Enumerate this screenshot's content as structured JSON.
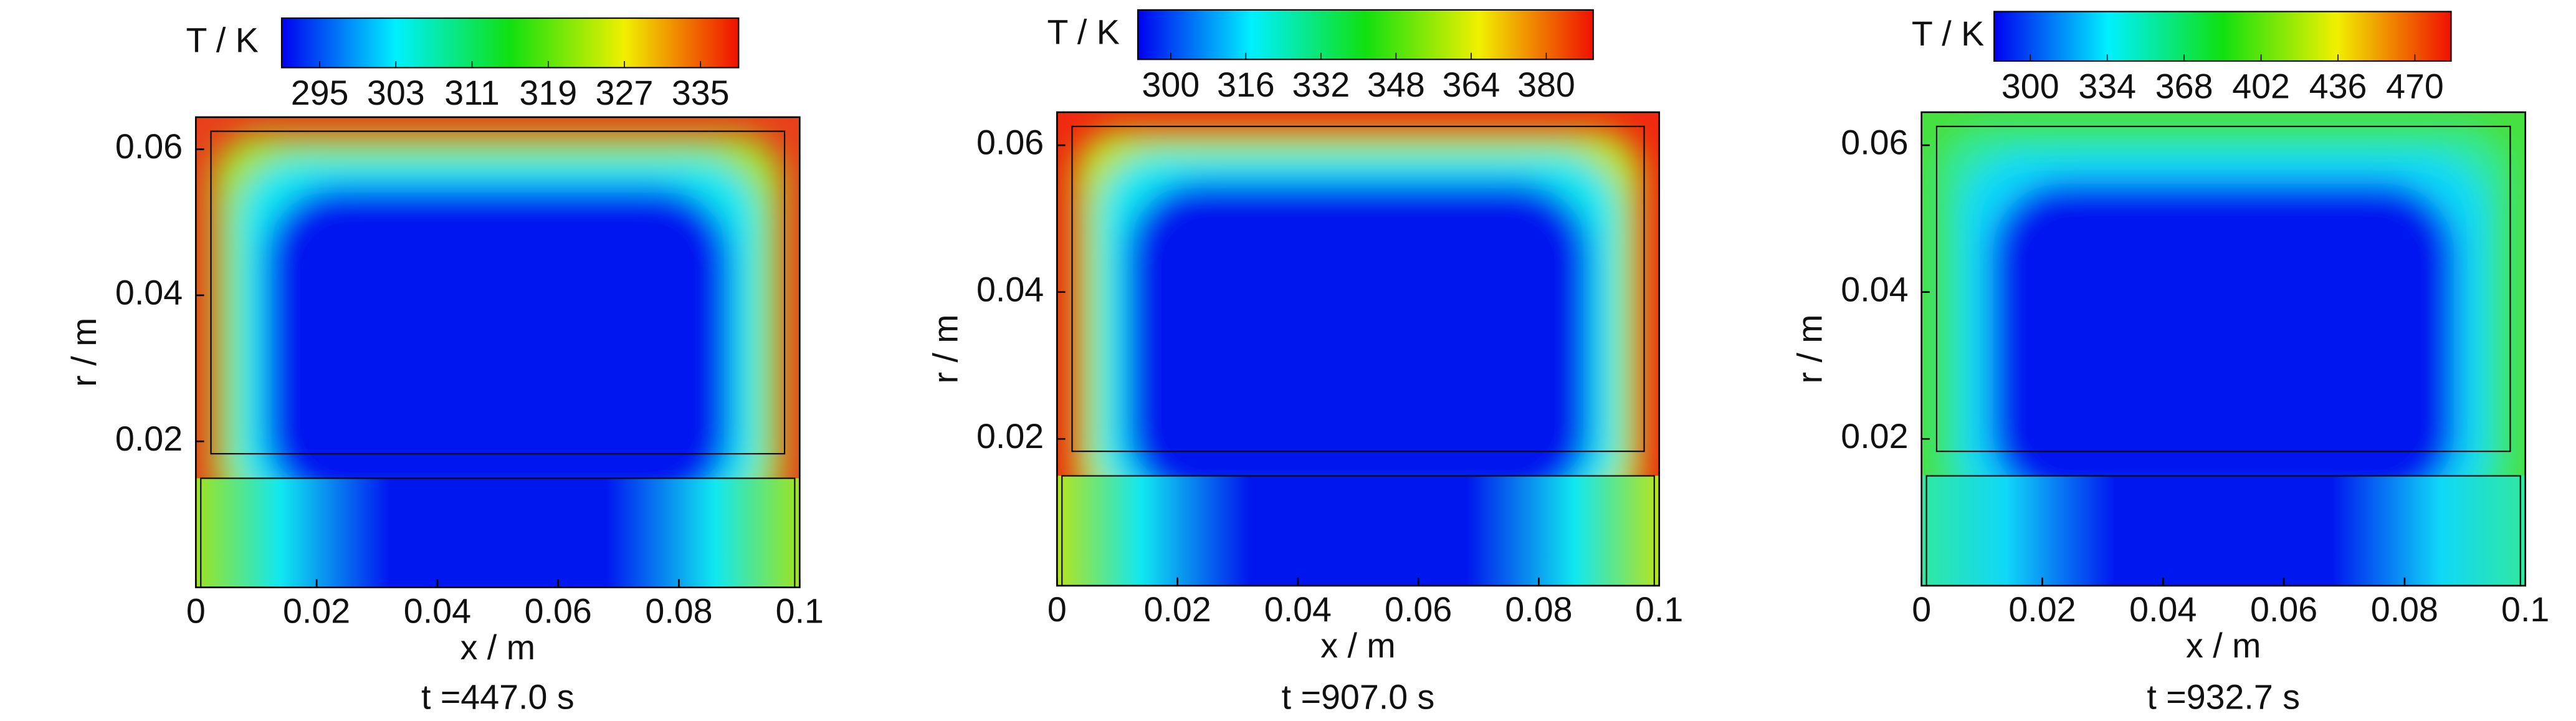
{
  "chart_data": [
    {
      "type": "heatmap",
      "title": "t =447.0 s",
      "xlabel": "x / m",
      "ylabel": "r / m",
      "colorbar_label": "T / K",
      "colorbar_lim": [
        291,
        339
      ],
      "colorbar_ticks": [
        295,
        303,
        311,
        319,
        327,
        335
      ],
      "xlim": [
        0,
        0.1
      ],
      "ylim": [
        0,
        0.0644
      ],
      "xticks": [
        0,
        0.02,
        0.04,
        0.06,
        0.08,
        0.1
      ],
      "yticks": [
        0.02,
        0.04,
        0.06
      ]
    },
    {
      "type": "heatmap",
      "title": "t =907.0 s",
      "xlabel": "x / m",
      "ylabel": "r / m",
      "colorbar_label": "T / K",
      "colorbar_lim": [
        293,
        390
      ],
      "colorbar_ticks": [
        300,
        316,
        332,
        348,
        364,
        380
      ],
      "xlim": [
        0,
        0.1
      ],
      "ylim": [
        0,
        0.0645
      ],
      "xticks": [
        0,
        0.02,
        0.04,
        0.06,
        0.08,
        0.1
      ],
      "yticks": [
        0.02,
        0.04,
        0.06
      ]
    },
    {
      "type": "heatmap",
      "title": "t =932.7 s",
      "xlabel": "x / m",
      "ylabel": "r / m",
      "colorbar_label": "T / K",
      "colorbar_lim": [
        284,
        486
      ],
      "colorbar_ticks": [
        300,
        334,
        368,
        402,
        436,
        470
      ],
      "xlim": [
        0,
        0.1
      ],
      "ylim": [
        0,
        0.0645
      ],
      "xticks": [
        0,
        0.02,
        0.04,
        0.06,
        0.08,
        0.1
      ],
      "yticks": [
        0.02,
        0.04,
        0.06
      ]
    }
  ]
}
